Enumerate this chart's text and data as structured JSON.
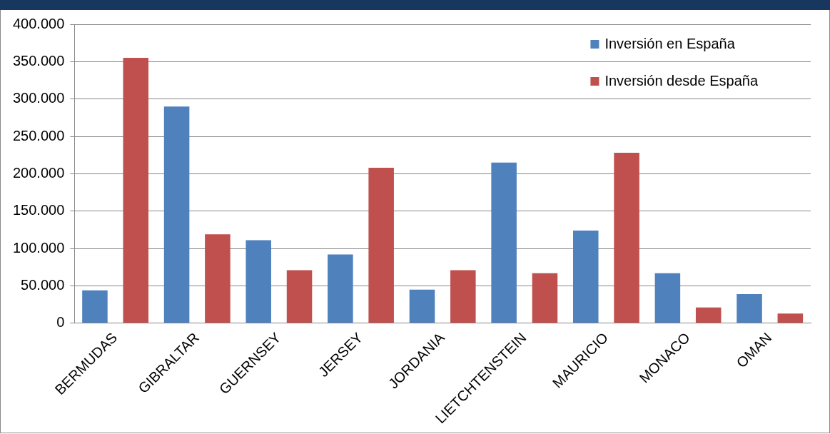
{
  "chart_data": {
    "type": "bar",
    "categories": [
      "BERMUDAS",
      "GIBRALTAR",
      "GUERNSEY",
      "JERSEY",
      "JORDANIA",
      "LIETCHTENSTEIN",
      "MAURICIO",
      "MONACO",
      "OMAN"
    ],
    "series": [
      {
        "name": "Inversión en España",
        "color": "#4f81bd",
        "values": [
          44000,
          290000,
          111000,
          92000,
          45000,
          215000,
          124000,
          67000,
          39000
        ]
      },
      {
        "name": "Inversión desde España",
        "color": "#c0504d",
        "values": [
          355000,
          119000,
          71000,
          208000,
          71000,
          67000,
          228000,
          21000,
          13000
        ]
      }
    ],
    "ylim": [
      0,
      400000
    ],
    "yticks": [
      {
        "value": 0,
        "label": "0"
      },
      {
        "value": 50000,
        "label": "50.000"
      },
      {
        "value": 100000,
        "label": "100.000"
      },
      {
        "value": 150000,
        "label": "150.000"
      },
      {
        "value": 200000,
        "label": "200.000"
      },
      {
        "value": 250000,
        "label": "250.000"
      },
      {
        "value": 300000,
        "label": "300.000"
      },
      {
        "value": 350000,
        "label": "350.000"
      },
      {
        "value": 400000,
        "label": "400.000"
      }
    ],
    "grid": "y",
    "legend": "top right"
  }
}
